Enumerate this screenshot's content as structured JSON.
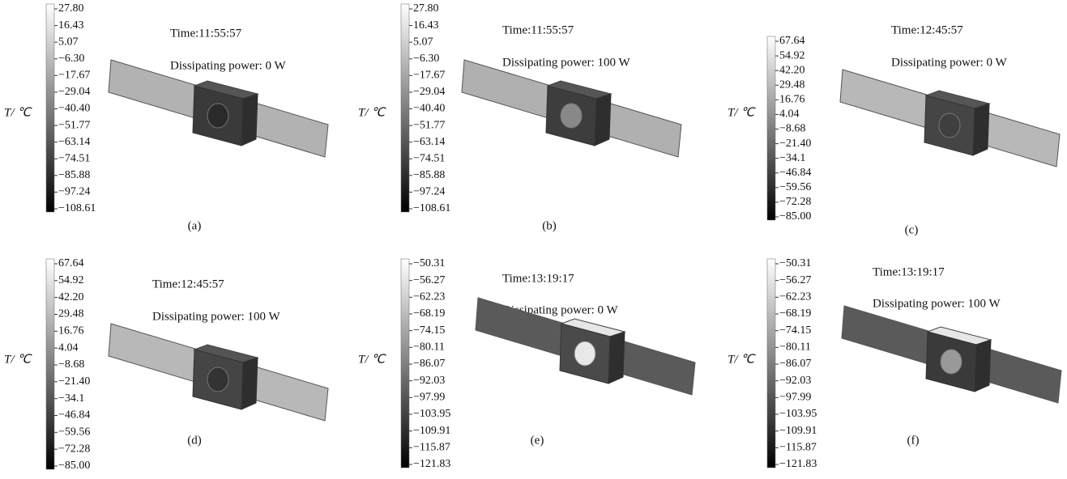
{
  "panels": [
    {
      "axis_label": "T/ ℃",
      "time": "Time:11:55:57",
      "power": "Dissipating power: 0 W",
      "caption": "(a)",
      "ticks": [
        "27.80",
        "16.43",
        "5.07",
        "−6.30",
        "−17.67",
        "−29.04",
        "−40.40",
        "−51.77",
        "−63.14",
        "−74.51",
        "−85.88",
        "−97.24",
        "−108.61"
      ]
    },
    {
      "axis_label": "T/ ℃",
      "time": "Time:11:55:57",
      "power": "Dissipating power: 100 W",
      "caption": "(b)",
      "ticks": [
        "27.80",
        "16.43",
        "5.07",
        "−6.30",
        "−17.67",
        "−29.04",
        "−40.40",
        "−51.77",
        "−63.14",
        "−74.51",
        "−85.88",
        "−97.24",
        "−108.61"
      ]
    },
    {
      "axis_label": "T/ ℃",
      "time": "Time:12:45:57",
      "power": "Dissipating power: 0 W",
      "caption": "(c)",
      "ticks": [
        "67.64",
        "54.92",
        "42.20",
        "29.48",
        "16.76",
        "4.04",
        "−8.68",
        "−21.40",
        "−34.1",
        "−46.84",
        "−59.56",
        "−72.28",
        "−85.00"
      ]
    },
    {
      "axis_label": "T/ ℃",
      "time": "Time:12:45:57",
      "power": "Dissipating power: 100 W",
      "caption": "(d)",
      "ticks": [
        "67.64",
        "54.92",
        "42.20",
        "29.48",
        "16.76",
        "4.04",
        "−8.68",
        "−21.40",
        "−34.1",
        "−46.84",
        "−59.56",
        "−72.28",
        "−85.00"
      ]
    },
    {
      "axis_label": "T/ ℃",
      "time": "Time:13:19:17",
      "power": "Dissipating power: 0 W",
      "caption": "(e)",
      "ticks": [
        "−50.31",
        "−56.27",
        "−62.23",
        "−68.19",
        "−74.15",
        "−80.11",
        "−86.07",
        "−92.03",
        "−97.99",
        "−103.95",
        "−109.91",
        "−115.87",
        "−121.83"
      ]
    },
    {
      "axis_label": "T/ ℃",
      "time": "Time:13:19:17",
      "power": "Dissipating power: 100 W",
      "caption": "(f)",
      "ticks": [
        "−50.31",
        "−56.27",
        "−62.23",
        "−68.19",
        "−74.15",
        "−80.11",
        "−86.07",
        "−92.03",
        "−97.99",
        "−103.95",
        "−109.91",
        "−115.87",
        "−121.83"
      ]
    }
  ]
}
